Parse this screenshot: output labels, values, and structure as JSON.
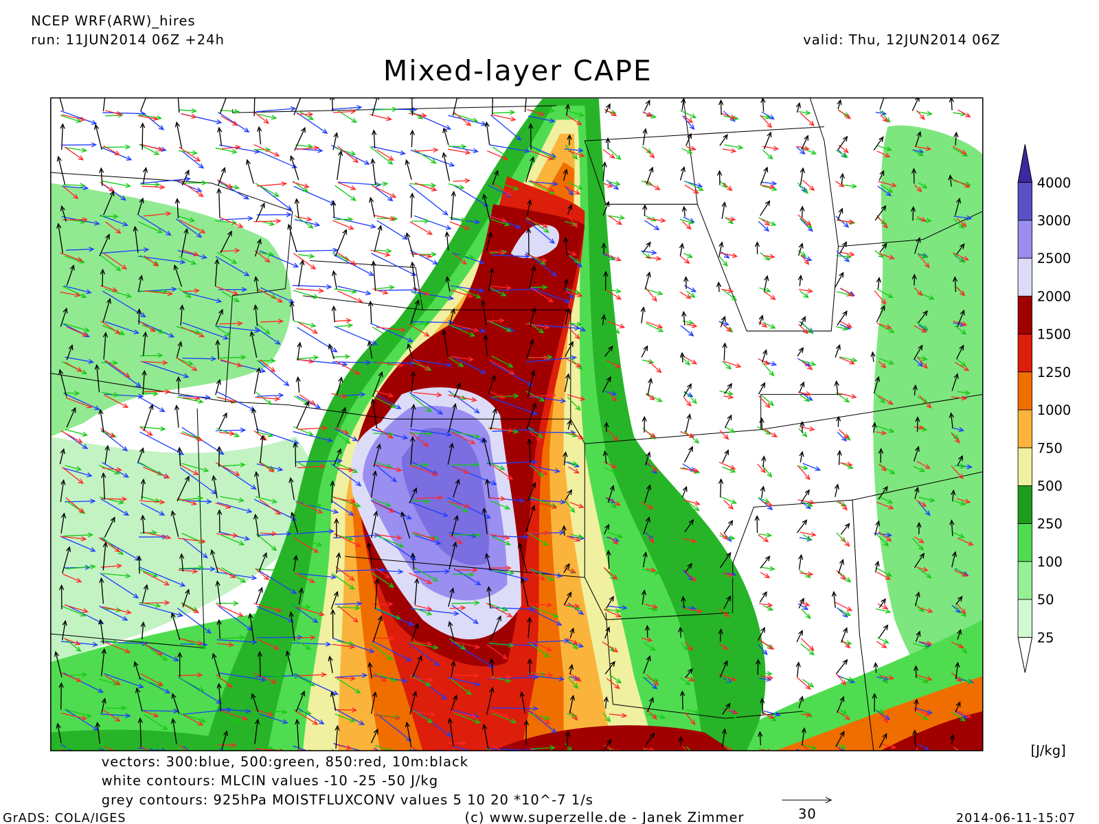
{
  "header": {
    "model": "NCEP WRF(ARW)_hires",
    "run": "run: 11JUN2014 06Z +24h",
    "valid": "valid: Thu, 12JUN2014 06Z",
    "title": "Mixed-layer CAPE"
  },
  "colorbar": {
    "labels": [
      4000,
      3000,
      2500,
      2000,
      1500,
      1250,
      1000,
      750,
      500,
      250,
      100,
      50,
      25
    ],
    "unit": "[J/kg]"
  },
  "footer": {
    "legend": [
      "vectors: 300:blue, 500:green, 850:red, 10m:black",
      "white contours: MLCIN values -10 -25 -50 J/kg",
      "grey contours: 925hPa MOISTFLUXCONV values 5 10 20 *10^-7 1/s"
    ],
    "vector_scale": "30",
    "grads": "GrADS: COLA/IGES",
    "credit": "(c) www.superzelle.de - Janek Zimmer",
    "timestamp": "2014-06-11-15:07"
  }
}
